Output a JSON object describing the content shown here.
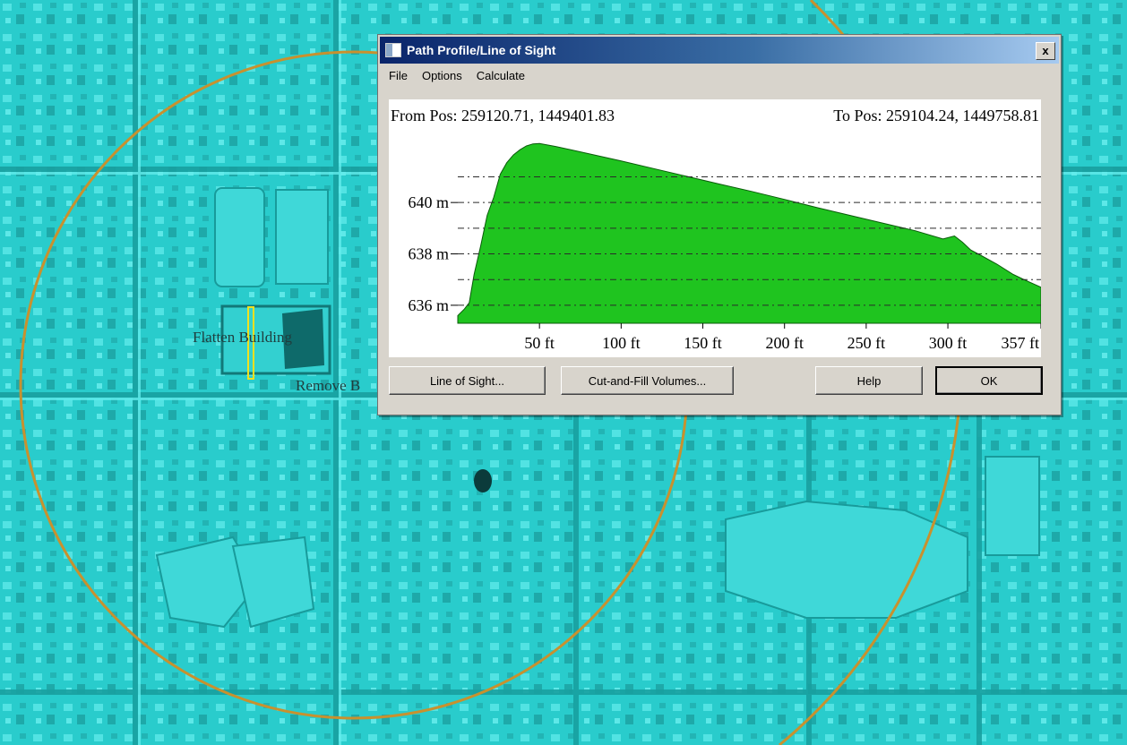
{
  "map": {
    "labels": [
      "Flatten Building",
      "Remove B"
    ],
    "colors": {
      "terrain": "#27c7c7",
      "circle": "#c8912e",
      "marker": "#f0e020"
    }
  },
  "dialog": {
    "title": "Path Profile/Line of Sight",
    "close_label": "x",
    "menu": [
      "File",
      "Options",
      "Calculate"
    ],
    "buttons": {
      "line_of_sight": "Line of Sight...",
      "cut_fill": "Cut-and-Fill Volumes...",
      "help": "Help",
      "ok": "OK"
    }
  },
  "chart_data": {
    "type": "area",
    "from_pos": "From Pos: 259120.71, 1449401.83",
    "to_pos": "To Pos: 259104.24, 1449758.81",
    "x_ticks": [
      50,
      100,
      150,
      200,
      250,
      300,
      357
    ],
    "x_tick_labels": [
      "50 ft",
      "100 ft",
      "150 ft",
      "200 ft",
      "250 ft",
      "300 ft",
      "357 ft"
    ],
    "y_ticks": [
      636,
      638,
      640
    ],
    "y_tick_labels": [
      "636 m",
      "638 m",
      "640 m"
    ],
    "xlim": [
      0,
      357
    ],
    "ylim": [
      635.3,
      642.55
    ],
    "fill_color": "#1fc41f",
    "grid": "dash-dot horizontal",
    "x": [
      0,
      4,
      7,
      10,
      14,
      18,
      22,
      26,
      30,
      34,
      38,
      42,
      46,
      50,
      60,
      80,
      100,
      120,
      140,
      160,
      180,
      200,
      220,
      240,
      260,
      280,
      297,
      304,
      309,
      314,
      320,
      330,
      340,
      350,
      357
    ],
    "y": [
      635.6,
      635.85,
      636.1,
      637.2,
      638.3,
      639.5,
      640.2,
      641.1,
      641.55,
      641.85,
      642.05,
      642.2,
      642.28,
      642.3,
      642.18,
      641.9,
      641.62,
      641.32,
      641.02,
      640.72,
      640.43,
      640.12,
      639.8,
      639.5,
      639.2,
      638.9,
      638.58,
      638.7,
      638.45,
      638.15,
      637.95,
      637.6,
      637.2,
      636.9,
      636.7
    ]
  }
}
